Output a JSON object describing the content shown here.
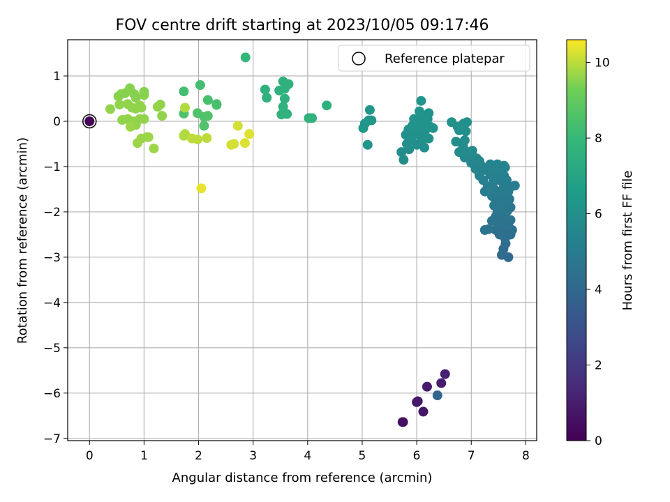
{
  "chart_data": {
    "type": "scatter",
    "title": "FOV centre drift starting at 2023/10/05 09:17:46",
    "xlabel": "Angular distance from reference (arcmin)",
    "ylabel": "Rotation from reference (arcmin)",
    "xlim": [
      -0.4,
      8.2
    ],
    "ylim": [
      -7.05,
      1.8
    ],
    "xticks": [
      0,
      1,
      2,
      3,
      4,
      5,
      6,
      7,
      8
    ],
    "yticks": [
      1,
      0,
      -1,
      -2,
      -3,
      -4,
      -5,
      -6,
      -7
    ],
    "xtick_labels": [
      "0",
      "1",
      "2",
      "3",
      "4",
      "5",
      "6",
      "7",
      "8"
    ],
    "ytick_labels": [
      "1",
      "0",
      "−1",
      "−2",
      "−3",
      "−4",
      "−5",
      "−6",
      "−7"
    ],
    "grid": true,
    "legend": {
      "position": "top-right",
      "entries": [
        "Reference platepar"
      ]
    },
    "colorbar": {
      "label": "Hours from first FF file",
      "range": [
        0,
        10.6
      ],
      "ticks": [
        0,
        2,
        4,
        6,
        8,
        10
      ],
      "tick_labels": [
        "0",
        "2",
        "4",
        "6",
        "8",
        "10"
      ],
      "colormap": "viridis"
    },
    "reference": {
      "x": 0.0,
      "y": 0.0,
      "label": "Reference platepar"
    },
    "points": [
      [
        0.0,
        0.0,
        0.0
      ],
      [
        5.75,
        -6.64,
        0.5
      ],
      [
        5.74,
        -6.64,
        0.5
      ],
      [
        6.12,
        -6.41,
        0.7
      ],
      [
        6.0,
        -6.2,
        0.8
      ],
      [
        6.02,
        -6.18,
        0.8
      ],
      [
        6.19,
        -5.86,
        0.9
      ],
      [
        6.45,
        -5.78,
        1.0
      ],
      [
        6.52,
        -5.58,
        1.1
      ],
      [
        6.38,
        -6.05,
        3.9
      ],
      [
        7.68,
        -3.0,
        4.1
      ],
      [
        7.56,
        -2.95,
        4.1
      ],
      [
        7.59,
        -2.82,
        4.2
      ],
      [
        7.63,
        -2.7,
        4.2
      ],
      [
        7.62,
        -2.58,
        4.3
      ],
      [
        7.52,
        -2.5,
        4.3
      ],
      [
        7.72,
        -2.5,
        4.3
      ],
      [
        7.45,
        -2.4,
        4.4
      ],
      [
        7.6,
        -2.38,
        4.4
      ],
      [
        7.75,
        -2.4,
        4.4
      ],
      [
        7.25,
        -2.4,
        4.5
      ],
      [
        7.32,
        -2.38,
        4.5
      ],
      [
        7.5,
        -2.3,
        4.5
      ],
      [
        7.68,
        -2.3,
        4.5
      ],
      [
        7.38,
        -2.2,
        4.6
      ],
      [
        7.55,
        -2.2,
        4.6
      ],
      [
        7.72,
        -2.18,
        4.6
      ],
      [
        7.45,
        -2.1,
        4.6
      ],
      [
        7.62,
        -2.08,
        4.7
      ],
      [
        7.48,
        -2.0,
        4.7
      ],
      [
        7.66,
        -1.98,
        4.7
      ],
      [
        7.72,
        -1.9,
        4.7
      ],
      [
        7.42,
        -1.86,
        4.8
      ],
      [
        7.55,
        -1.88,
        4.8
      ],
      [
        7.6,
        -1.8,
        4.8
      ],
      [
        7.45,
        -1.75,
        4.8
      ],
      [
        7.52,
        -1.68,
        4.9
      ],
      [
        7.7,
        -1.72,
        4.9
      ],
      [
        7.38,
        -1.65,
        4.9
      ],
      [
        7.58,
        -1.6,
        4.9
      ],
      [
        7.5,
        -1.55,
        5.0
      ],
      [
        7.68,
        -1.55,
        5.0
      ],
      [
        7.42,
        -1.5,
        5.0
      ],
      [
        7.72,
        -1.45,
        5.0
      ],
      [
        7.8,
        -1.42,
        5.0
      ],
      [
        7.6,
        -1.45,
        5.0
      ],
      [
        7.3,
        -1.45,
        5.1
      ],
      [
        7.25,
        -1.55,
        5.1
      ],
      [
        7.4,
        -1.35,
        5.1
      ],
      [
        7.55,
        -1.32,
        5.1
      ],
      [
        7.65,
        -1.3,
        5.1
      ],
      [
        7.22,
        -1.3,
        5.2
      ],
      [
        7.45,
        -1.25,
        5.2
      ],
      [
        7.35,
        -1.18,
        5.2
      ],
      [
        7.6,
        -1.2,
        5.2
      ],
      [
        7.15,
        -1.2,
        5.3
      ],
      [
        7.5,
        -1.1,
        5.3
      ],
      [
        7.28,
        -1.08,
        5.3
      ],
      [
        7.4,
        -1.05,
        5.3
      ],
      [
        7.62,
        -1.02,
        5.3
      ],
      [
        7.08,
        -1.05,
        5.4
      ],
      [
        7.2,
        -1.0,
        5.4
      ],
      [
        7.35,
        -0.95,
        5.4
      ],
      [
        7.48,
        -0.95,
        5.4
      ],
      [
        7.6,
        -0.98,
        5.4
      ],
      [
        7.0,
        -0.92,
        5.5
      ],
      [
        7.15,
        -0.88,
        5.5
      ],
      [
        7.1,
        -0.82,
        5.5
      ],
      [
        6.98,
        -0.75,
        5.6
      ],
      [
        6.88,
        -0.8,
        5.6
      ],
      [
        6.78,
        -0.68,
        5.7
      ],
      [
        6.95,
        -0.68,
        5.7
      ],
      [
        7.02,
        -0.65,
        5.7
      ],
      [
        6.85,
        -0.55,
        5.8
      ],
      [
        6.72,
        -0.45,
        5.8
      ],
      [
        6.88,
        -0.42,
        5.8
      ],
      [
        6.9,
        -0.22,
        5.9
      ],
      [
        6.78,
        -0.2,
        5.9
      ],
      [
        6.75,
        -0.12,
        6.0
      ],
      [
        6.86,
        -0.05,
        6.0
      ],
      [
        6.64,
        -0.02,
        6.0
      ],
      [
        6.92,
        -0.02,
        6.0
      ],
      [
        5.72,
        -0.68,
        5.8
      ],
      [
        5.76,
        -0.85,
        5.8
      ],
      [
        5.86,
        -0.62,
        5.9
      ],
      [
        5.82,
        -0.5,
        5.9
      ],
      [
        6.0,
        -0.52,
        5.9
      ],
      [
        6.14,
        -0.58,
        5.9
      ],
      [
        5.9,
        -0.4,
        5.9
      ],
      [
        6.08,
        -0.45,
        5.9
      ],
      [
        5.8,
        -0.3,
        6.0
      ],
      [
        5.95,
        -0.3,
        6.0
      ],
      [
        6.1,
        -0.35,
        6.0
      ],
      [
        6.22,
        -0.38,
        6.0
      ],
      [
        5.85,
        -0.18,
        6.0
      ],
      [
        6.02,
        -0.2,
        6.0
      ],
      [
        6.15,
        -0.22,
        6.0
      ],
      [
        5.92,
        -0.1,
        6.1
      ],
      [
        6.08,
        -0.12,
        6.1
      ],
      [
        6.25,
        -0.12,
        6.1
      ],
      [
        6.3,
        -0.15,
        6.1
      ],
      [
        6.0,
        -0.02,
        6.1
      ],
      [
        6.12,
        -0.05,
        6.1
      ],
      [
        5.95,
        0.05,
        6.1
      ],
      [
        6.2,
        0.05,
        6.1
      ],
      [
        6.05,
        0.08,
        6.1
      ],
      [
        6.15,
        0.12,
        6.1
      ],
      [
        6.22,
        0.18,
        6.1
      ],
      [
        6.05,
        0.22,
        6.2
      ],
      [
        6.08,
        0.45,
        6.2
      ],
      [
        5.1,
        -0.52,
        6.2
      ],
      [
        5.02,
        -0.15,
        6.3
      ],
      [
        5.05,
        -0.05,
        6.3
      ],
      [
        5.12,
        0.02,
        6.3
      ],
      [
        5.17,
        0.02,
        6.3
      ],
      [
        5.14,
        0.25,
        6.3
      ],
      [
        3.25,
        0.52,
        7.6
      ],
      [
        3.22,
        0.7,
        7.6
      ],
      [
        3.48,
        0.68,
        7.6
      ],
      [
        3.58,
        0.72,
        7.6
      ],
      [
        3.55,
        0.88,
        7.6
      ],
      [
        3.65,
        0.82,
        7.6
      ],
      [
        3.58,
        0.5,
        7.6
      ],
      [
        3.55,
        0.32,
        7.6
      ],
      [
        3.52,
        0.15,
        7.7
      ],
      [
        3.62,
        0.16,
        7.7
      ],
      [
        4.02,
        0.07,
        7.7
      ],
      [
        4.08,
        0.07,
        7.7
      ],
      [
        4.35,
        0.35,
        7.5
      ],
      [
        2.86,
        1.41,
        7.9
      ],
      [
        1.73,
        0.66,
        8.3
      ],
      [
        2.03,
        0.8,
        8.3
      ],
      [
        2.17,
        0.47,
        8.4
      ],
      [
        2.33,
        0.38,
        8.4
      ],
      [
        2.33,
        0.36,
        8.4
      ],
      [
        1.73,
        0.17,
        8.5
      ],
      [
        1.98,
        0.18,
        8.6
      ],
      [
        2.1,
        0.1,
        8.6
      ],
      [
        2.17,
        0.12,
        8.6
      ],
      [
        2.1,
        -0.1,
        8.6
      ],
      [
        0.74,
        0.73,
        9.5
      ],
      [
        0.58,
        0.6,
        9.5
      ],
      [
        0.65,
        0.62,
        9.5
      ],
      [
        0.53,
        0.55,
        9.5
      ],
      [
        0.82,
        0.6,
        9.5
      ],
      [
        0.85,
        0.52,
        9.5
      ],
      [
        1.0,
        0.65,
        9.5
      ],
      [
        1.0,
        0.58,
        9.5
      ],
      [
        0.7,
        0.38,
        9.6
      ],
      [
        0.78,
        0.3,
        9.6
      ],
      [
        0.92,
        0.35,
        9.6
      ],
      [
        1.25,
        0.32,
        9.6
      ],
      [
        1.3,
        0.37,
        9.6
      ],
      [
        0.38,
        0.27,
        9.6
      ],
      [
        0.55,
        0.37,
        9.6
      ],
      [
        0.85,
        0.28,
        9.6
      ],
      [
        0.95,
        0.3,
        9.6
      ],
      [
        1.33,
        0.12,
        9.6
      ],
      [
        0.6,
        0.03,
        9.6
      ],
      [
        0.7,
        0.05,
        9.6
      ],
      [
        0.8,
        0.0,
        9.6
      ],
      [
        0.92,
        0.05,
        9.6
      ],
      [
        1.0,
        0.05,
        9.6
      ],
      [
        0.85,
        -0.08,
        9.6
      ],
      [
        0.75,
        -0.12,
        9.7
      ],
      [
        0.95,
        -0.38,
        9.7
      ],
      [
        0.88,
        -0.48,
        9.7
      ],
      [
        1.05,
        -0.35,
        9.7
      ],
      [
        1.18,
        -0.6,
        9.7
      ],
      [
        1.08,
        -0.35,
        9.7
      ],
      [
        1.75,
        0.3,
        9.9
      ],
      [
        1.73,
        -0.32,
        9.9
      ],
      [
        1.75,
        -0.28,
        9.9
      ],
      [
        1.88,
        -0.38,
        10.0
      ],
      [
        1.98,
        -0.4,
        10.0
      ],
      [
        2.15,
        -0.37,
        10.0
      ],
      [
        2.6,
        -0.52,
        10.2
      ],
      [
        2.65,
        -0.5,
        10.2
      ],
      [
        2.72,
        -0.1,
        10.2
      ],
      [
        2.85,
        -0.48,
        10.3
      ],
      [
        2.93,
        -0.28,
        10.3
      ],
      [
        2.05,
        -1.48,
        10.4
      ]
    ]
  }
}
